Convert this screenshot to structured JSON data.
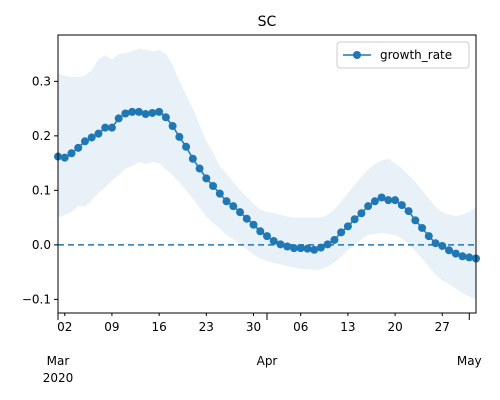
{
  "chart_data": {
    "type": "line",
    "title": "SC",
    "xlabel": "",
    "ylabel": "",
    "x_start": "2020-03-01",
    "xlim": [
      "2020-03-01",
      "2020-05-02"
    ],
    "ylim": [
      -0.125,
      0.385
    ],
    "yticks": [
      -0.1,
      0.0,
      0.1,
      0.2,
      0.3
    ],
    "ytick_labels": [
      "−0.1",
      "0.0",
      "0.1",
      "0.2",
      "0.3"
    ],
    "xticks_minor": [
      {
        "date": "2020-03-02",
        "label": "02"
      },
      {
        "date": "2020-03-09",
        "label": "09"
      },
      {
        "date": "2020-03-16",
        "label": "16"
      },
      {
        "date": "2020-03-23",
        "label": "23"
      },
      {
        "date": "2020-03-30",
        "label": "30"
      },
      {
        "date": "2020-04-06",
        "label": "06"
      },
      {
        "date": "2020-04-13",
        "label": "13"
      },
      {
        "date": "2020-04-20",
        "label": "20"
      },
      {
        "date": "2020-04-27",
        "label": "27"
      }
    ],
    "xticks_major": [
      {
        "date": "2020-03-01",
        "label": "Mar",
        "sublabel": "2020"
      },
      {
        "date": "2020-04-01",
        "label": "Apr",
        "sublabel": ""
      },
      {
        "date": "2020-05-01",
        "label": "May",
        "sublabel": ""
      }
    ],
    "legend": {
      "position": "top-right"
    },
    "grid": false,
    "reference_line": {
      "y": 0.0,
      "style": "dashed",
      "color": "#1f77b4"
    },
    "band_color": "#e8f0f8",
    "series": [
      {
        "name": "growth_rate",
        "color": "#1f77b4",
        "marker": "circle",
        "y": [
          0.162,
          0.16,
          0.168,
          0.178,
          0.19,
          0.197,
          0.204,
          0.215,
          0.215,
          0.232,
          0.241,
          0.244,
          0.244,
          0.24,
          0.242,
          0.244,
          0.234,
          0.218,
          0.198,
          0.18,
          0.158,
          0.14,
          0.122,
          0.108,
          0.094,
          0.08,
          0.071,
          0.06,
          0.048,
          0.037,
          0.025,
          0.016,
          0.007,
          0.001,
          -0.003,
          -0.006,
          -0.006,
          -0.007,
          -0.009,
          -0.005,
          0.001,
          0.009,
          0.023,
          0.034,
          0.047,
          0.058,
          0.071,
          0.08,
          0.087,
          0.082,
          0.082,
          0.073,
          0.062,
          0.045,
          0.031,
          0.016,
          0.003,
          -0.002,
          -0.01,
          -0.016,
          -0.021,
          -0.023,
          -0.025
        ],
        "lower": [
          0.05,
          0.055,
          0.06,
          0.072,
          0.07,
          0.082,
          0.095,
          0.105,
          0.118,
          0.128,
          0.14,
          0.145,
          0.152,
          0.148,
          0.152,
          0.15,
          0.138,
          0.128,
          0.115,
          0.1,
          0.085,
          0.068,
          0.052,
          0.04,
          0.03,
          0.018,
          0.01,
          0.002,
          -0.008,
          -0.018,
          -0.025,
          -0.03,
          -0.033,
          -0.036,
          -0.039,
          -0.042,
          -0.044,
          -0.045,
          -0.046,
          -0.045,
          -0.04,
          -0.032,
          -0.022,
          -0.01,
          0.0,
          0.01,
          0.018,
          0.02,
          0.022,
          0.02,
          0.018,
          0.012,
          0.002,
          -0.012,
          -0.025,
          -0.04,
          -0.055,
          -0.065,
          -0.072,
          -0.08,
          -0.088,
          -0.095,
          -0.1
        ],
        "upper": [
          0.315,
          0.31,
          0.308,
          0.308,
          0.31,
          0.32,
          0.34,
          0.348,
          0.34,
          0.35,
          0.352,
          0.355,
          0.36,
          0.358,
          0.355,
          0.358,
          0.35,
          0.33,
          0.3,
          0.275,
          0.25,
          0.22,
          0.19,
          0.17,
          0.145,
          0.13,
          0.115,
          0.1,
          0.088,
          0.075,
          0.065,
          0.06,
          0.058,
          0.055,
          0.052,
          0.05,
          0.05,
          0.05,
          0.05,
          0.05,
          0.055,
          0.065,
          0.08,
          0.095,
          0.11,
          0.125,
          0.138,
          0.148,
          0.155,
          0.158,
          0.15,
          0.14,
          0.128,
          0.115,
          0.1,
          0.085,
          0.07,
          0.06,
          0.055,
          0.053,
          0.055,
          0.06,
          0.07
        ]
      }
    ]
  }
}
